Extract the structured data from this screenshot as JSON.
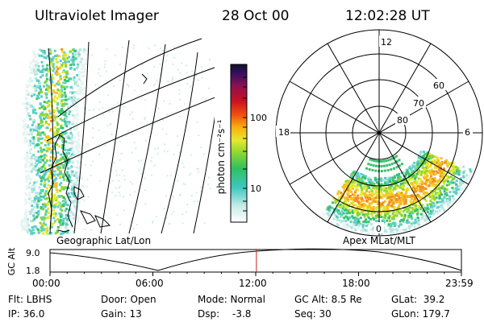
{
  "header": {
    "instrument": "Ultraviolet Imager",
    "date": "28 Oct 00",
    "time": "12:02:28 UT"
  },
  "colorbar": {
    "unit_label": "photon cm⁻²s⁻¹",
    "ticks": [
      "100",
      "10"
    ],
    "scale": "log"
  },
  "left_panel": {
    "caption": "Geographic Lat/Lon"
  },
  "right_panel": {
    "caption": "Apex MLat/MLT",
    "mlt_labels": {
      "top": "12",
      "left": "18",
      "right": "6",
      "bottom": "0"
    },
    "mlat_labels": [
      "80",
      "70",
      "60"
    ]
  },
  "timeline": {
    "y_label": "GC Alt",
    "y_ticks": [
      "9.0",
      "1.8"
    ],
    "x_ticks": [
      "00:00",
      "06:00",
      "12:00",
      "18:00",
      "23:59"
    ],
    "current_time_fraction": 0.5017,
    "marker_color": "#c02020"
  },
  "info": {
    "flt": "Flt: LBHS",
    "ip": "IP: 36.0",
    "door": "Door: Open",
    "gain": "Gain: 13",
    "mode": "Mode: Normal",
    "dsp_label": "Dsp:",
    "dsp_value": "-3.8",
    "gc_alt": "GC Alt: 8.5 Re",
    "seq": "Seq: 30",
    "glat": "GLat:  39.2",
    "glon": "GLon: 179.7"
  }
}
